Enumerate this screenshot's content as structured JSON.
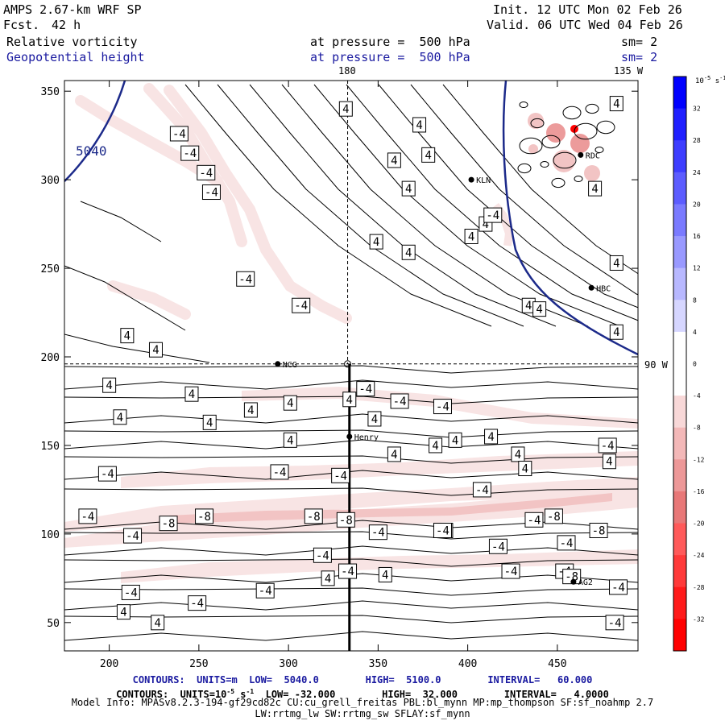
{
  "header": {
    "model": "AMPS 2.67-km WRF SP",
    "fcst_label": "Fcst.",
    "fcst_value": "42 h",
    "init": "Init. 12 UTC Mon 02 Feb 26",
    "valid": "Valid. 06 UTC Wed 04 Feb 26",
    "field1_name": "Relative vorticity",
    "field1_level": "at pressure =  500 hPa",
    "field1_sm": "sm= 2",
    "field2_name": "Geopotential height",
    "field2_level": "at pressure =  500 hPa",
    "field2_sm": "sm= 2"
  },
  "geo_labels": {
    "top_180": "180",
    "top_135w": "135 W",
    "right_90w": "90 W",
    "contour_5040": "5040"
  },
  "footer": {
    "line1": "CONTOURS:  UNITS=m  LOW=  5040.0        HIGH=  5100.0        INTERVAL=   60.000",
    "line2_a": "CONTOURS:  UNITS=10",
    "line2_sup": "-5",
    "line2_b": " s",
    "line2_sup2": "-1",
    "line2_c": "  LOW= -32.000        HIGH=  32.000        INTERVAL=   4.0000",
    "line3": "Model Info: MPASv8.2.3-194-gf29cd82c CU:cu_grell_freitas PBL:bl_mynn MP:mp_thompson SF:sf_noahmp 2.7",
    "line4": "LW:rrtmg_lw SW:rrtmg_sw SFLAY:sf_mynn"
  },
  "colors": {
    "height_contour": "#1c2a8a",
    "vort_contour": "#000000",
    "neg_light": "#f8e4e4",
    "neg_mid": "#f2c4c4",
    "neg_strong": "#ec9b9b",
    "neg_max": "#ff0000"
  },
  "chart_data": {
    "type": "contour-map",
    "title": "Relative vorticity and Geopotential height at 500 hPa",
    "xlim": [
      175,
      495
    ],
    "ylim": [
      34,
      356
    ],
    "x_ticks": [
      200,
      250,
      300,
      350,
      400,
      450
    ],
    "y_ticks": [
      50,
      100,
      150,
      200,
      250,
      300,
      350
    ],
    "colorbar": {
      "unit_label": "10",
      "unit_sup": "-5",
      "unit_tail": " s",
      "unit_tail_sup": "-1",
      "levels": [
        32,
        28,
        24,
        20,
        16,
        12,
        8,
        4,
        0,
        -4,
        -8,
        -12,
        -16,
        -20,
        -24,
        -28,
        -32
      ],
      "colors": [
        "#0000ff",
        "#1f1fff",
        "#3d3dff",
        "#5c5cff",
        "#7a7aff",
        "#9999ff",
        "#b8b8ff",
        "#d6d6ff",
        "#ffffff",
        "#ffffff",
        "#f8d8d8",
        "#f3b8b8",
        "#ed9898",
        "#e87878",
        "#ff5a5a",
        "#ff3a3a",
        "#ff1a1a",
        "#ff0000"
      ]
    },
    "stations": [
      {
        "name": "KLN",
        "x": 402,
        "y": 300
      },
      {
        "name": "HBC",
        "x": 469,
        "y": 239
      },
      {
        "name": "NCG",
        "x": 294,
        "y": 196
      },
      {
        "name": "Henry",
        "x": 334,
        "y": 155
      },
      {
        "name": "AG2",
        "x": 459,
        "y": 73
      },
      {
        "name": "RDC",
        "x": 463,
        "y": 314
      }
    ],
    "contour_labels_pos": [
      {
        "t": "4",
        "x": 332,
        "y": 340
      },
      {
        "t": "4",
        "x": 373,
        "y": 331
      },
      {
        "t": "4",
        "x": 378,
        "y": 314
      },
      {
        "t": "4",
        "x": 359,
        "y": 311
      },
      {
        "t": "4",
        "x": 367,
        "y": 295
      },
      {
        "t": "4",
        "x": 410,
        "y": 275
      },
      {
        "t": "4",
        "x": 402,
        "y": 268
      },
      {
        "t": "4",
        "x": 349,
        "y": 265
      },
      {
        "t": "4",
        "x": 367,
        "y": 259
      },
      {
        "t": "4",
        "x": 483,
        "y": 343
      },
      {
        "t": "4",
        "x": 434,
        "y": 229
      },
      {
        "t": "4",
        "x": 440,
        "y": 227
      },
      {
        "t": "4",
        "x": 483,
        "y": 253
      },
      {
        "t": "4",
        "x": 483,
        "y": 214
      },
      {
        "t": "4",
        "x": 471,
        "y": 295
      },
      {
        "t": "4",
        "x": 210,
        "y": 212
      },
      {
        "t": "4",
        "x": 226,
        "y": 204
      },
      {
        "t": "4",
        "x": 200,
        "y": 184
      },
      {
        "t": "4",
        "x": 206,
        "y": 166
      },
      {
        "t": "4",
        "x": 246,
        "y": 179
      },
      {
        "t": "4",
        "x": 256,
        "y": 163
      },
      {
        "t": "4",
        "x": 279,
        "y": 170
      },
      {
        "t": "4",
        "x": 301,
        "y": 174
      },
      {
        "t": "4",
        "x": 334,
        "y": 176
      },
      {
        "t": "4",
        "x": 348,
        "y": 165
      },
      {
        "t": "4",
        "x": 301,
        "y": 153
      },
      {
        "t": "4",
        "x": 359,
        "y": 145
      },
      {
        "t": "4",
        "x": 382,
        "y": 150
      },
      {
        "t": "4",
        "x": 393,
        "y": 153
      },
      {
        "t": "4",
        "x": 413,
        "y": 155
      },
      {
        "t": "4",
        "x": 428,
        "y": 145
      },
      {
        "t": "4",
        "x": 479,
        "y": 141
      },
      {
        "t": "4",
        "x": 388,
        "y": 102
      },
      {
        "t": "4",
        "x": 322,
        "y": 75
      },
      {
        "t": "4",
        "x": 354,
        "y": 77
      },
      {
        "t": "4",
        "x": 208,
        "y": 56
      },
      {
        "t": "4",
        "x": 227,
        "y": 50
      },
      {
        "t": "4",
        "x": 432,
        "y": 137
      },
      {
        "t": "-4",
        "x": 239,
        "y": 326
      },
      {
        "t": "-4",
        "x": 245,
        "y": 315
      },
      {
        "t": "-4",
        "x": 254,
        "y": 304
      },
      {
        "t": "-4",
        "x": 257,
        "y": 293
      },
      {
        "t": "-4",
        "x": 276,
        "y": 244
      },
      {
        "t": "-4",
        "x": 307,
        "y": 229
      },
      {
        "t": "-4",
        "x": 414,
        "y": 280
      },
      {
        "t": "-4",
        "x": 343,
        "y": 182
      },
      {
        "t": "-4",
        "x": 362,
        "y": 175
      },
      {
        "t": "-4",
        "x": 386,
        "y": 172
      },
      {
        "t": "-4",
        "x": 478,
        "y": 150
      },
      {
        "t": "-4",
        "x": 199,
        "y": 134
      },
      {
        "t": "-4",
        "x": 295,
        "y": 135
      },
      {
        "t": "-4",
        "x": 329,
        "y": 133
      },
      {
        "t": "-4",
        "x": 408,
        "y": 125
      },
      {
        "t": "-4",
        "x": 213,
        "y": 99
      },
      {
        "t": "-4",
        "x": 350,
        "y": 101
      },
      {
        "t": "-4",
        "x": 386,
        "y": 102
      },
      {
        "t": "-4",
        "x": 417,
        "y": 93
      },
      {
        "t": "-4",
        "x": 455,
        "y": 95
      },
      {
        "t": "-4",
        "x": 319,
        "y": 88
      },
      {
        "t": "-4",
        "x": 424,
        "y": 79
      },
      {
        "t": "-4",
        "x": 454,
        "y": 79
      },
      {
        "t": "-4",
        "x": 212,
        "y": 67
      },
      {
        "t": "-4",
        "x": 249,
        "y": 61
      },
      {
        "t": "-4",
        "x": 287,
        "y": 68
      },
      {
        "t": "-4",
        "x": 333,
        "y": 79
      },
      {
        "t": "-4",
        "x": 484,
        "y": 70
      },
      {
        "t": "-4",
        "x": 482,
        "y": 50
      },
      {
        "t": "-4",
        "x": 437,
        "y": 108
      },
      {
        "t": "-8",
        "x": 233,
        "y": 106
      },
      {
        "t": "-8",
        "x": 253,
        "y": 110
      },
      {
        "t": "-8",
        "x": 314,
        "y": 110
      },
      {
        "t": "-8",
        "x": 332,
        "y": 108
      },
      {
        "t": "-8",
        "x": 448,
        "y": 110
      },
      {
        "t": "-8",
        "x": 473,
        "y": 102
      },
      {
        "t": "-8",
        "x": 458,
        "y": 76
      },
      {
        "t": "-4",
        "x": 188,
        "y": 110
      }
    ]
  }
}
